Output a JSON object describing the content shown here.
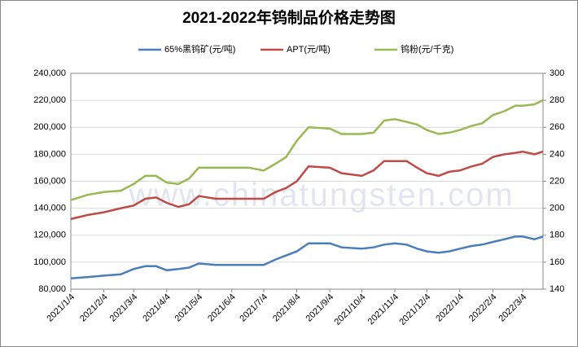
{
  "chart_data": {
    "type": "line",
    "title": "2021-2022年钨制品价格走势图",
    "watermark": "www.chinatungsten.com",
    "x": [
      "2021/1/4",
      "2021/1/20",
      "2021/2/4",
      "2021/2/20",
      "2021/3/4",
      "2021/3/15",
      "2021/3/25",
      "2021/4/4",
      "2021/4/15",
      "2021/4/25",
      "2021/5/4",
      "2021/5/20",
      "2021/6/4",
      "2021/6/20",
      "2021/7/4",
      "2021/7/15",
      "2021/7/25",
      "2021/8/4",
      "2021/8/15",
      "2021/9/4",
      "2021/9/15",
      "2021/10/4",
      "2021/10/15",
      "2021/10/25",
      "2021/11/4",
      "2021/11/15",
      "2021/11/25",
      "2021/12/4",
      "2021/12/15",
      "2021/12/25",
      "2022/1/4",
      "2022/1/15",
      "2022/1/25",
      "2022/2/4",
      "2022/2/15",
      "2022/2/25",
      "2022/3/4",
      "2022/3/15",
      "2022/3/23"
    ],
    "xlim": [
      "2021/1/4",
      "2022/3/23"
    ],
    "xticks": [
      "2021/1/4",
      "2021/2/4",
      "2021/3/4",
      "2021/4/4",
      "2021/5/4",
      "2021/6/4",
      "2021/7/4",
      "2021/8/4",
      "2021/9/4",
      "2021/10/4",
      "2021/11/4",
      "2021/12/4",
      "2022/1/4",
      "2022/2/4",
      "2022/3/4"
    ],
    "ylim": [
      80000,
      240000
    ],
    "yticks": [
      {
        "value": 80000,
        "label": "80,000"
      },
      {
        "value": 100000,
        "label": "100,000"
      },
      {
        "value": 120000,
        "label": "120,000"
      },
      {
        "value": 140000,
        "label": "140,000"
      },
      {
        "value": 160000,
        "label": "160,000"
      },
      {
        "value": 180000,
        "label": "180,000"
      },
      {
        "value": 200000,
        "label": "200,000"
      },
      {
        "value": 220000,
        "label": "220,000"
      },
      {
        "value": 240000,
        "label": "240,000"
      }
    ],
    "y2lim": [
      140,
      300
    ],
    "y2ticks": [
      140,
      160,
      180,
      200,
      220,
      240,
      260,
      280,
      300
    ],
    "grid": true,
    "series": [
      {
        "name": "65%黑钨矿(元/吨)",
        "color": "#4a7ebb",
        "values": [
          88000,
          89000,
          90000,
          91000,
          95000,
          97000,
          97000,
          94000,
          95000,
          96000,
          99000,
          98000,
          98000,
          98000,
          98000,
          102000,
          105000,
          108000,
          114000,
          114000,
          111000,
          110000,
          111000,
          113000,
          114000,
          113000,
          110000,
          108000,
          107000,
          108000,
          110000,
          112000,
          113000,
          115000,
          117000,
          119000,
          119000,
          117000,
          119000
        ]
      },
      {
        "name": "APT(元/吨)",
        "color": "#be4b48",
        "values": [
          132000,
          135000,
          137000,
          140000,
          142000,
          147000,
          148000,
          144000,
          141000,
          143000,
          149000,
          147000,
          147000,
          147000,
          147000,
          152000,
          155000,
          160000,
          171000,
          170000,
          166000,
          164000,
          168000,
          175000,
          175000,
          175000,
          170000,
          166000,
          164000,
          167000,
          168000,
          171000,
          173000,
          178000,
          180000,
          181000,
          182000,
          180000,
          182000
        ]
      },
      {
        "name": "钨粉(元/千克)",
        "color": "#98b954",
        "axis": "y2",
        "values": [
          206,
          210,
          212,
          213,
          218,
          224,
          224,
          219,
          218,
          222,
          230,
          230,
          230,
          230,
          228,
          233,
          238,
          250,
          260,
          259,
          255,
          255,
          256,
          265,
          266,
          264,
          262,
          258,
          255,
          256,
          258,
          261,
          263,
          269,
          272,
          276,
          276,
          277,
          280
        ]
      }
    ]
  }
}
